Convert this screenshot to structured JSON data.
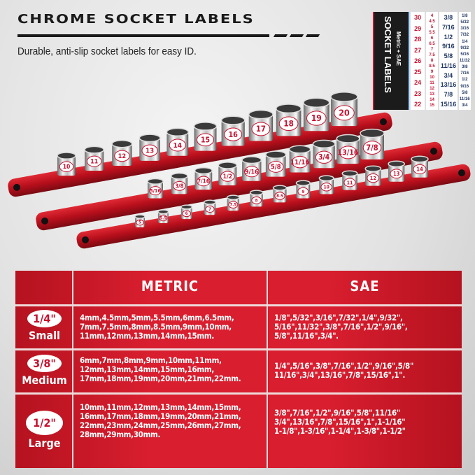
{
  "header": {
    "title": "CHROME SOCKET LABELS",
    "subtitle": "Durable, anti-slip socket labels for easy ID."
  },
  "label_sheet": {
    "title": "SOCKET LABELS",
    "subtitle": "Metric + SAE",
    "col_metric_large": [
      "30",
      "29",
      "28",
      "27",
      "26",
      "25",
      "24",
      "23",
      "22"
    ],
    "col_metric_small": [
      "4",
      "4.5",
      "5",
      "5.5",
      "6",
      "6.5",
      "7",
      "7.5",
      "8",
      "8.5",
      "9",
      "10",
      "11",
      "12",
      "13",
      "14",
      "15"
    ],
    "col_sae_medium": [
      "3/8",
      "7/16",
      "1/2",
      "9/16",
      "5/8",
      "11/16",
      "3/4",
      "13/16",
      "7/8",
      "15/16"
    ],
    "col_sae_small": [
      "1/8",
      "5/32",
      "3/16",
      "7/32",
      "1/4",
      "9/32",
      "5/16",
      "11/32",
      "3/8",
      "7/16",
      "1/2",
      "9/16",
      "5/8",
      "11/16",
      "3/4"
    ]
  },
  "rails": [
    {
      "drive": "1/2\"",
      "color": "#c8102e",
      "sockets": [
        "10",
        "11",
        "12",
        "13",
        "14",
        "15",
        "16",
        "17",
        "18",
        "19",
        "20"
      ]
    },
    {
      "drive": "3/8\"",
      "color": "#c8102e",
      "sockets": [
        "5/16",
        "3/8",
        "7/16",
        "1/2",
        "9/16",
        "5/8",
        "11/16",
        "3/4",
        "13/16",
        "7/8"
      ]
    },
    {
      "drive": "1/4\"",
      "color": "#c8102e",
      "sockets": [
        "5",
        "5.5",
        "6",
        "7",
        "7.5",
        "8",
        "8.5",
        "9",
        "10",
        "11",
        "12",
        "13",
        "14"
      ]
    }
  ],
  "table": {
    "headers": {
      "metric": "METRIC",
      "sae": "SAE"
    },
    "rows": [
      {
        "drive": "1/4\"",
        "name": "Small",
        "metric": "4mm,4.5mm,5mm,5.5mm,6mm,6.5mm,\n7mm,7.5mm,8mm,8.5mm,9mm,10mm,\n11mm,12mm,13mm,14mm,15mm.",
        "sae": "1/8\",5/32\",3/16\",7/32\",1/4\",9/32\",\n5/16\",11/32\",3/8\",7/16\",1/2\",9/16\",\n5/8\",11/16\",3/4\"."
      },
      {
        "drive": "3/8\"",
        "name": "Medium",
        "metric": "6mm,7mm,8mm,9mm,10mm,11mm,\n12mm,13mm,14mm,15mm,16mm,\n17mm,18mm,19mm,20mm,21mm,22mm.",
        "sae": "1/4\",5/16\",3/8\",7/16\",1/2\",9/16\",5/8\"\n11/16\",3/4\",13/16\",7/8\",15/16\",1\"."
      },
      {
        "drive": "1/2\"",
        "name": "Large",
        "metric": "10mm,11mm,12mm,13mm,14mm,15mm,\n16mm,17mm,18mm,19mm,20mm,21mm,\n22mm,23mm,24mm,25mm,26mm,27mm,\n28mm,29mm,30mm.",
        "sae": "3/8\",7/16\",1/2\",9/16\",5/8\",11/16\"\n3/4\",13/16\",7/8\",15/16\",1\",1-1/16\"\n1-1/8\",1-3/16\",1-1/4\",1-3/8\",1-1/2\""
      }
    ]
  }
}
